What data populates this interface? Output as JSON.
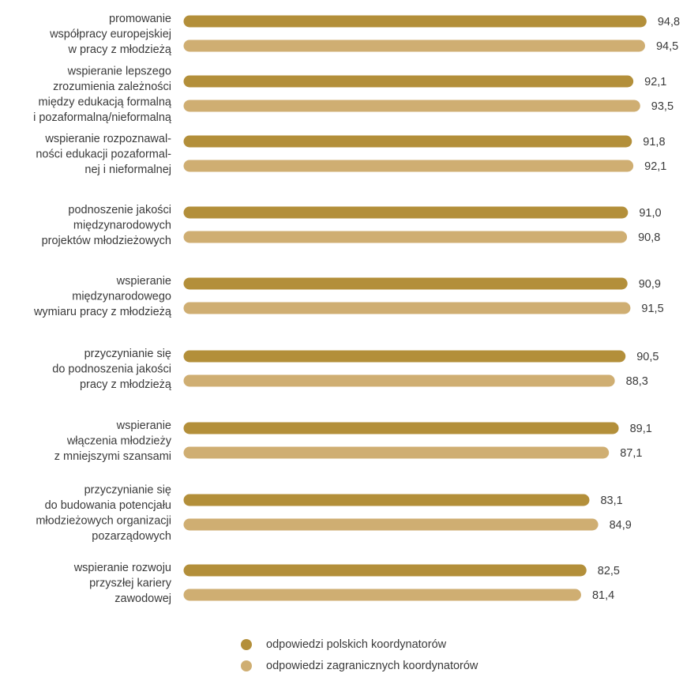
{
  "chart_data": {
    "type": "bar",
    "orientation": "horizontal",
    "categories": [
      [
        "promowanie",
        "współpracy europejskiej",
        "w pracy z młodzieżą"
      ],
      [
        "wspieranie lepszego",
        "zrozumienia zależności",
        "między edukacją formalną",
        "i pozaformalną/nieformalną"
      ],
      [
        "wspieranie rozpoznawal-",
        "ności edukacji pozaformal-",
        "nej i nieformalnej"
      ],
      [
        "podnoszenie jakości",
        "międzynarodowych",
        "projektów młodzieżowych"
      ],
      [
        "wspieranie",
        "międzynarodowego",
        "wymiaru pracy z młodzieżą"
      ],
      [
        "przyczynianie się",
        "do podnoszenia jakości",
        "pracy z młodzieżą"
      ],
      [
        "wspieranie",
        "włączenia młodzieży",
        "z mniejszymi szansami"
      ],
      [
        "przyczynianie się",
        "do budowania potencjału",
        "młodzieżowych organizacji",
        "pozarządowych"
      ],
      [
        "wspieranie rozwoju",
        "przyszłej kariery",
        "zawodowej"
      ]
    ],
    "series": [
      {
        "name": "odpowiedzi polskich koordynatorów",
        "color": "#b38f3a",
        "values": [
          94.8,
          92.1,
          91.8,
          91.0,
          90.9,
          90.5,
          89.1,
          83.1,
          82.5
        ],
        "labels": [
          "94,8",
          "92,1",
          "91,8",
          "91,0",
          "90,9",
          "90,5",
          "89,1",
          "83,1",
          "82,5"
        ]
      },
      {
        "name": "odpowiedzi zagranicznych koordynatorów",
        "color": "#cfae72",
        "values": [
          94.5,
          93.5,
          92.1,
          90.8,
          91.5,
          88.3,
          87.1,
          84.9,
          81.4
        ],
        "labels": [
          "94,5",
          "93,5",
          "92,1",
          "90,8",
          "91,5",
          "88,3",
          "87,1",
          "84,9",
          "81,4"
        ]
      }
    ],
    "xlim": [
      0,
      100
    ],
    "grid": false,
    "legend_position": "bottom"
  }
}
